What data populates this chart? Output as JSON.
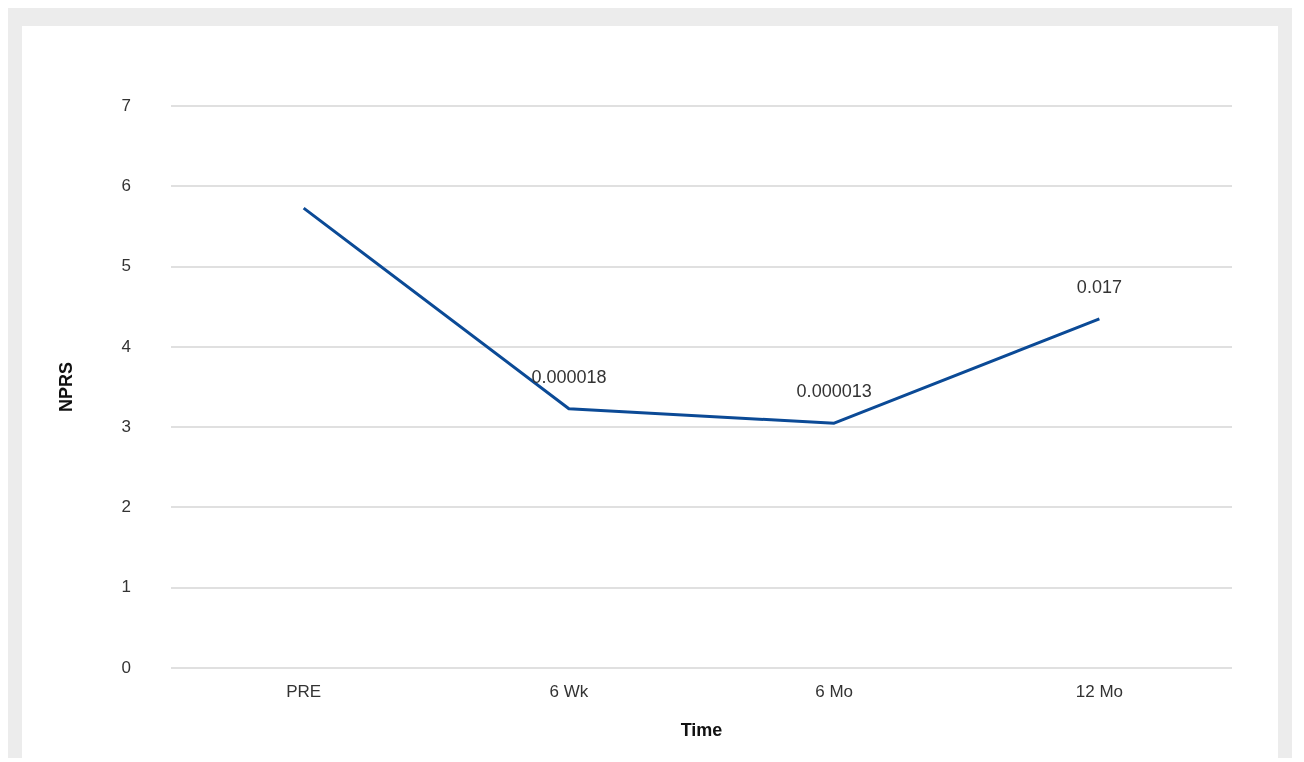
{
  "chart_data": {
    "type": "line",
    "xlabel": "Time",
    "ylabel": "NPRS",
    "categories": [
      "PRE",
      "6 Wk",
      "6 Mo",
      "12 Mo"
    ],
    "series": [
      {
        "color": "#0b4a96",
        "values": [
          5.73,
          3.23,
          3.05,
          4.35
        ]
      }
    ],
    "ylim": [
      0,
      7
    ],
    "yticks": [
      0,
      1,
      2,
      3,
      4,
      5,
      6,
      7
    ],
    "grid": "y",
    "legend": false,
    "marker": "none",
    "line_style": "solid",
    "annotations": [
      {
        "text": "0.000018",
        "x": "6 Wk",
        "y": 3.23
      },
      {
        "text": "0.000013",
        "x": "6 Mo",
        "y": 3.05
      },
      {
        "text": "0.017",
        "x": "12 Mo",
        "y": 4.35
      }
    ]
  }
}
